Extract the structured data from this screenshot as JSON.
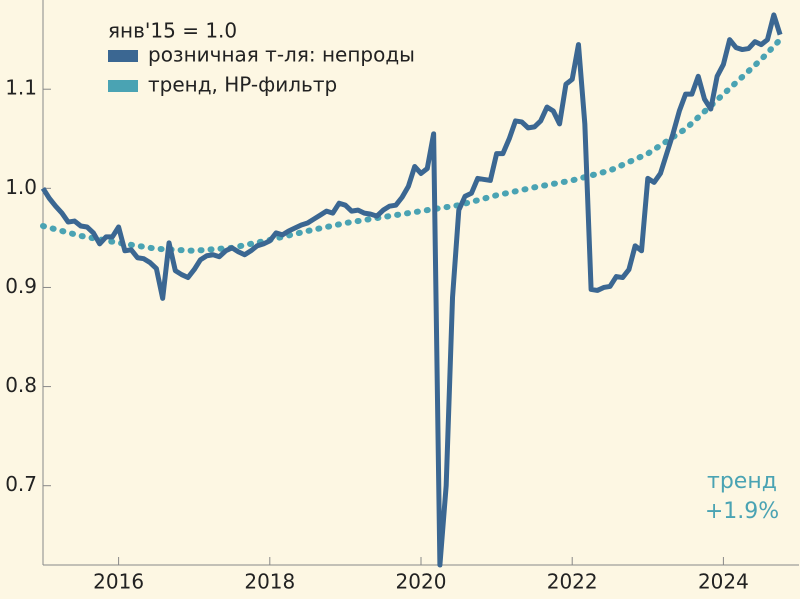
{
  "chart_data": {
    "type": "line",
    "subtitle": "янв'15 = 1.0",
    "annotations": [
      "тренд",
      "+1.9%"
    ],
    "annotation_color": "#4aa3b3",
    "xlim": [
      2015,
      2025
    ],
    "xticks": [
      2016,
      2018,
      2020,
      2022,
      2024
    ],
    "ylim": [
      0.62,
      1.19
    ],
    "yticks": [
      0.7,
      0.8,
      0.9,
      {
        "value": 1,
        "label": "1.0"
      },
      1.1
    ],
    "legend": "top-left",
    "series": [
      {
        "name": "розничная т-ля: непроды",
        "color": "#3b6792",
        "style": "solid",
        "x": [
          2015,
          2015.083,
          2015.167,
          2015.25,
          2015.333,
          2015.417,
          2015.5,
          2015.583,
          2015.667,
          2015.75,
          2015.833,
          2015.917,
          2016,
          2016.083,
          2016.167,
          2016.25,
          2016.333,
          2016.417,
          2016.5,
          2016.583,
          2016.667,
          2016.75,
          2016.833,
          2016.917,
          2017,
          2017.083,
          2017.167,
          2017.25,
          2017.333,
          2017.417,
          2017.5,
          2017.583,
          2017.667,
          2017.75,
          2017.833,
          2017.917,
          2018,
          2018.083,
          2018.167,
          2018.25,
          2018.333,
          2018.417,
          2018.5,
          2018.583,
          2018.667,
          2018.75,
          2018.833,
          2018.917,
          2019,
          2019.083,
          2019.167,
          2019.25,
          2019.333,
          2019.417,
          2019.5,
          2019.583,
          2019.667,
          2019.75,
          2019.833,
          2019.917,
          2020,
          2020.083,
          2020.167,
          2020.25,
          2020.333,
          2020.417,
          2020.5,
          2020.583,
          2020.667,
          2020.75,
          2020.833,
          2020.917,
          2021,
          2021.083,
          2021.167,
          2021.25,
          2021.333,
          2021.417,
          2021.5,
          2021.583,
          2021.667,
          2021.75,
          2021.833,
          2021.917,
          2022,
          2022.083,
          2022.167,
          2022.25,
          2022.333,
          2022.417,
          2022.5,
          2022.583,
          2022.667,
          2022.75,
          2022.833,
          2022.917,
          2023,
          2023.083,
          2023.167,
          2023.25,
          2023.333,
          2023.417,
          2023.5,
          2023.583,
          2023.667,
          2023.75,
          2023.833,
          2023.917,
          2024,
          2024.083,
          2024.167,
          2024.25,
          2024.333,
          2024.417,
          2024.5,
          2024.583,
          2024.667,
          2024.75
        ],
        "values": [
          1.0,
          0.99,
          0.982,
          0.975,
          0.966,
          0.967,
          0.962,
          0.961,
          0.955,
          0.944,
          0.951,
          0.951,
          0.961,
          0.937,
          0.938,
          0.93,
          0.929,
          0.925,
          0.919,
          0.889,
          0.945,
          0.917,
          0.913,
          0.91,
          0.918,
          0.928,
          0.932,
          0.933,
          0.931,
          0.937,
          0.94,
          0.936,
          0.933,
          0.937,
          0.942,
          0.944,
          0.947,
          0.955,
          0.953,
          0.957,
          0.96,
          0.963,
          0.965,
          0.969,
          0.973,
          0.977,
          0.975,
          0.985,
          0.983,
          0.977,
          0.978,
          0.975,
          0.974,
          0.972,
          0.978,
          0.982,
          0.983,
          0.991,
          1.002,
          1.022,
          1.015,
          1.02,
          1.055,
          0.62,
          0.7,
          0.89,
          0.978,
          0.992,
          0.995,
          1.01,
          1.009,
          1.008,
          1.035,
          1.035,
          1.05,
          1.068,
          1.067,
          1.061,
          1.062,
          1.068,
          1.082,
          1.078,
          1.065,
          1.105,
          1.11,
          1.145,
          1.065,
          0.898,
          0.897,
          0.9,
          0.901,
          0.911,
          0.91,
          0.918,
          0.942,
          0.937,
          1.01,
          1.006,
          1.015,
          1.035,
          1.055,
          1.078,
          1.095,
          1.095,
          1.113,
          1.09,
          1.08,
          1.113,
          1.125,
          1.15,
          1.142,
          1.14,
          1.141,
          1.148,
          1.145,
          1.15,
          1.175,
          1.155
        ]
      },
      {
        "name": "тренд, HP-фильтр",
        "color": "#4aa3b3",
        "style": "dotted",
        "x": [
          2015,
          2015.5,
          2016,
          2016.5,
          2017,
          2017.5,
          2018,
          2018.5,
          2019,
          2019.5,
          2020,
          2020.5,
          2021,
          2021.5,
          2022,
          2022.5,
          2023,
          2023.5,
          2024,
          2024.5,
          2024.75
        ],
        "values": [
          0.962,
          0.952,
          0.945,
          0.939,
          0.937,
          0.94,
          0.948,
          0.957,
          0.965,
          0.971,
          0.977,
          0.983,
          0.993,
          1.001,
          1.008,
          1.018,
          1.035,
          1.06,
          1.095,
          1.13,
          1.15
        ]
      }
    ]
  }
}
